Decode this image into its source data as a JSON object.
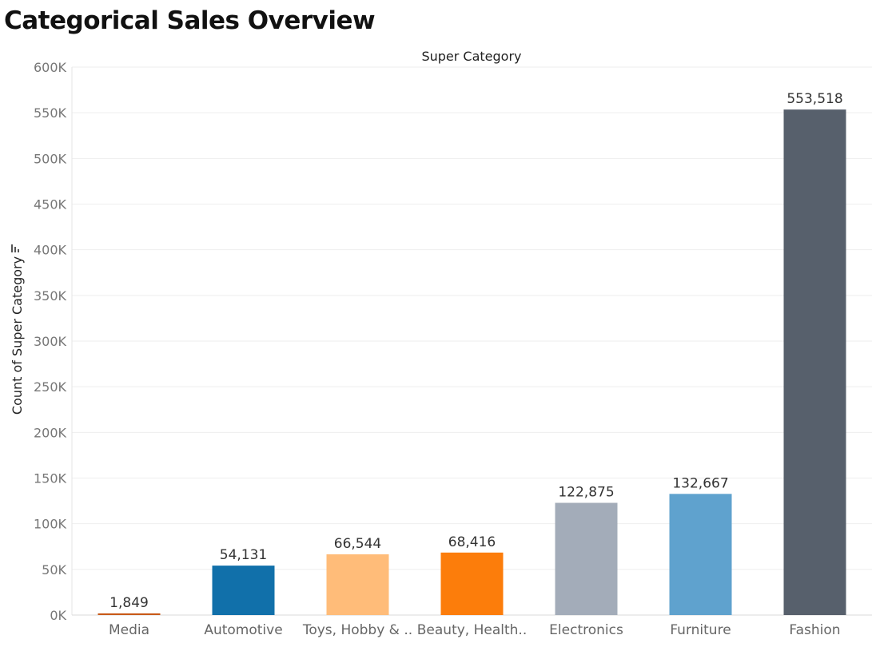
{
  "page": {
    "title": "Categorical Sales Overview"
  },
  "chart_data": {
    "type": "bar",
    "title": "Categorical Sales Overview",
    "xlabel": "Super Category",
    "ylabel": "Count of Super Category",
    "ylim": [
      0,
      600000
    ],
    "yticks": [
      0,
      50000,
      100000,
      150000,
      200000,
      250000,
      300000,
      350000,
      400000,
      450000,
      500000,
      550000,
      600000
    ],
    "ytick_labels": [
      "0K",
      "50K",
      "100K",
      "150K",
      "200K",
      "250K",
      "300K",
      "350K",
      "400K",
      "450K",
      "500K",
      "550K",
      "600K"
    ],
    "grid": true,
    "categories": [
      "Media",
      "Automotive",
      "Toys, Hobby & ..",
      "Beauty, Health..",
      "Electronics",
      "Furniture",
      "Fashion"
    ],
    "values": [
      1849,
      54131,
      66544,
      68416,
      122875,
      132667,
      553518
    ],
    "value_labels": [
      "1,849",
      "54,131",
      "66,544",
      "68,416",
      "122,875",
      "132,667",
      "553,518"
    ],
    "colors": [
      "#c85a19",
      "#1170aa",
      "#ffbc79",
      "#fc7d0b",
      "#a3acb9",
      "#5fa2ce",
      "#57606c"
    ]
  }
}
